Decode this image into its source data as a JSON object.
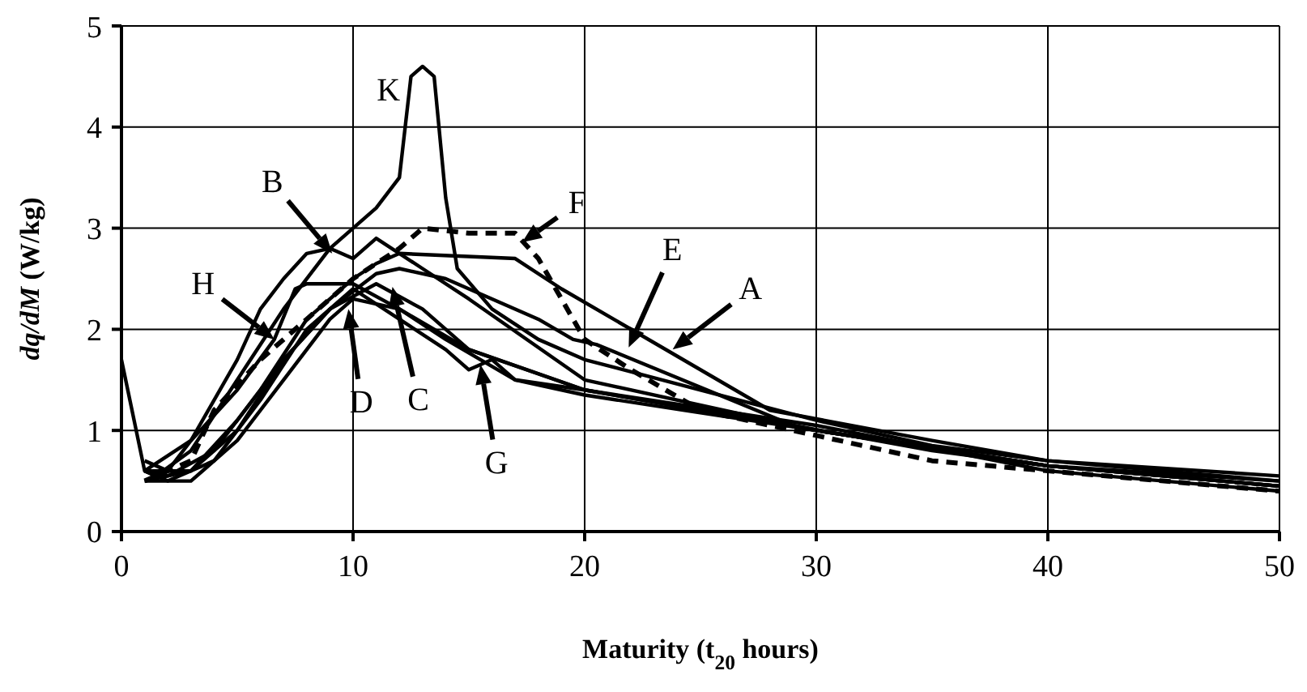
{
  "chart_data": {
    "type": "line",
    "xlabel": "Maturity (t$_{20}$ hours)",
    "ylabel": "dq/dM (W/kg)",
    "xlim": [
      0,
      50
    ],
    "ylim": [
      0,
      5
    ],
    "xticks": [
      0,
      10,
      20,
      30,
      40,
      50
    ],
    "yticks": [
      0,
      1,
      2,
      3,
      4,
      5
    ],
    "grid": true,
    "legend": false,
    "marker": "none",
    "line_style": "solid",
    "series": [
      {
        "color": "#000000",
        "x": [
          0,
          1,
          1.5,
          3,
          5,
          7,
          9,
          11,
          12,
          12.5,
          13,
          13.5,
          14,
          14.5,
          16,
          18,
          20,
          25,
          30,
          35,
          40,
          45,
          50
        ],
        "values": [
          1.7,
          0.6,
          0.55,
          0.8,
          1.5,
          2.2,
          2.8,
          3.2,
          3.5,
          4.5,
          4.6,
          4.5,
          3.3,
          2.6,
          2.2,
          1.9,
          1.7,
          1.4,
          1.1,
          0.85,
          0.7,
          0.6,
          0.5
        ]
      },
      {
        "color": "#000000",
        "x": [
          1,
          2,
          4,
          6,
          8,
          10,
          11,
          12,
          17,
          19,
          28,
          35,
          40,
          50
        ],
        "values": [
          0.6,
          0.55,
          0.8,
          1.4,
          2.1,
          2.5,
          2.65,
          2.75,
          2.7,
          2.4,
          1.2,
          0.9,
          0.7,
          0.55
        ]
      },
      {
        "color": "#000000",
        "x": [
          1,
          3,
          5,
          7,
          9,
          11,
          12,
          14,
          16,
          18,
          19.5,
          20.5,
          29,
          35,
          40,
          50
        ],
        "values": [
          0.5,
          0.6,
          1.1,
          1.7,
          2.2,
          2.55,
          2.6,
          2.5,
          2.3,
          2.1,
          1.9,
          1.85,
          1.05,
          0.8,
          0.65,
          0.5
        ]
      },
      {
        "color": "#000000",
        "line_style": "dashed",
        "x": [
          1,
          3,
          4,
          6,
          8,
          10,
          12,
          13,
          15,
          17,
          18,
          20,
          22,
          25,
          30,
          35,
          40,
          50
        ],
        "values": [
          0.5,
          0.7,
          1.2,
          1.7,
          2.1,
          2.5,
          2.8,
          3,
          2.95,
          2.95,
          2.7,
          1.9,
          1.6,
          1.2,
          0.95,
          0.7,
          0.6,
          0.4
        ]
      },
      {
        "color": "#000000",
        "x": [
          1,
          2,
          3,
          5,
          6.6,
          7.5,
          8,
          10,
          12,
          14,
          17,
          20,
          30,
          40,
          50
        ],
        "values": [
          0.7,
          0.6,
          0.9,
          1.4,
          1.9,
          2.4,
          2.45,
          2.45,
          2.2,
          1.9,
          1.5,
          1.35,
          1,
          0.65,
          0.45
        ]
      },
      {
        "color": "#000000",
        "x": [
          1,
          3,
          5,
          6,
          7,
          8,
          9,
          10,
          11,
          13,
          15,
          20,
          30,
          40,
          50
        ],
        "values": [
          0.6,
          0.9,
          1.7,
          2.2,
          2.5,
          2.75,
          2.8,
          2.7,
          2.9,
          2.6,
          2.3,
          1.5,
          1,
          0.65,
          0.45
        ]
      },
      {
        "color": "#000000",
        "x": [
          1,
          3,
          5,
          7,
          9,
          10,
          12,
          15,
          20,
          30,
          40,
          50
        ],
        "values": [
          0.5,
          0.5,
          0.9,
          1.5,
          2.1,
          2.3,
          2.2,
          1.8,
          1.4,
          1,
          0.65,
          0.45
        ]
      },
      {
        "color": "#000000",
        "x": [
          1,
          3,
          5,
          7,
          9,
          11,
          13,
          15,
          20,
          30,
          40,
          50
        ],
        "values": [
          0.6,
          0.6,
          1,
          1.7,
          2.2,
          2.45,
          2.2,
          1.8,
          1.4,
          1,
          0.65,
          0.45
        ]
      },
      {
        "color": "#000000",
        "x": [
          1,
          2,
          4,
          6,
          8,
          10,
          12,
          14,
          15,
          16,
          17,
          20,
          30,
          40,
          50
        ],
        "values": [
          0.6,
          0.5,
          0.7,
          1.3,
          2,
          2.4,
          2.1,
          1.8,
          1.6,
          1.7,
          1.5,
          1.4,
          1.05,
          0.6,
          0.4
        ]
      }
    ],
    "annotations": [
      {
        "text": "K",
        "x": 13,
        "y": 4.6
      },
      {
        "text": "B",
        "x": 9.1,
        "y": 2.75
      },
      {
        "text": "H",
        "x": 6.6,
        "y": 1.9
      },
      {
        "text": "D",
        "x": 9.8,
        "y": 2.2
      },
      {
        "text": "C",
        "x": 11.7,
        "y": 2.42
      },
      {
        "text": "G",
        "x": 15.5,
        "y": 1.65
      },
      {
        "text": "F",
        "x": 17.3,
        "y": 2.86
      },
      {
        "text": "E",
        "x": 21.9,
        "y": 1.82
      },
      {
        "text": "A",
        "x": 23.8,
        "y": 1.8
      }
    ]
  }
}
